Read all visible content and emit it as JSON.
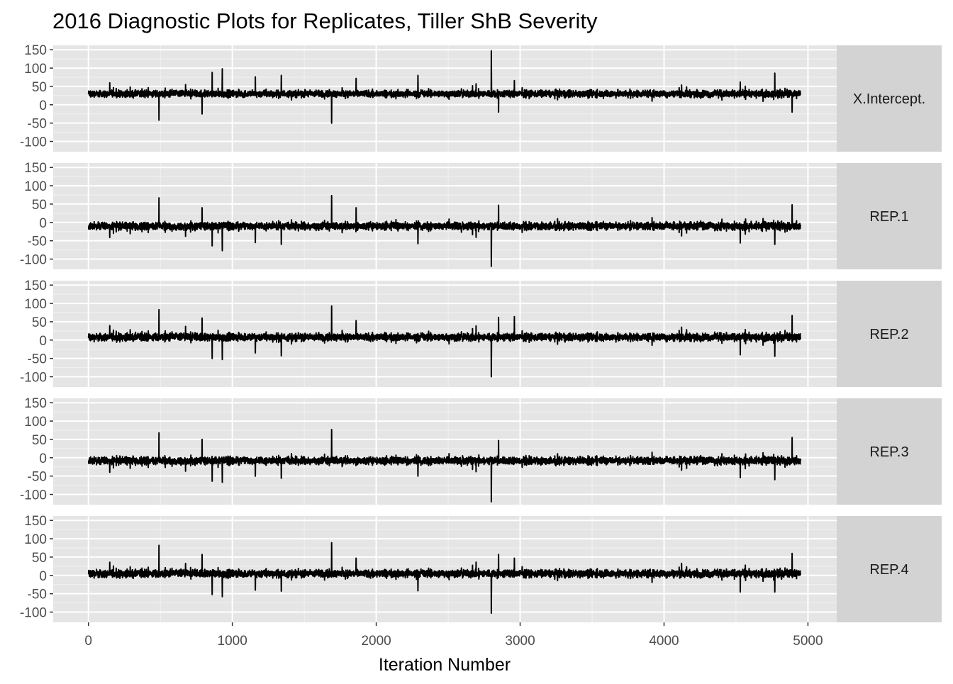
{
  "chart_data": {
    "type": "line",
    "title": "2016 Diagnostic Plots for Replicates, Tiller ShB Severity",
    "xlabel": "Iteration Number",
    "ylabel": "",
    "xlim": [
      -245,
      5200
    ],
    "ylim": [
      -128,
      162
    ],
    "xticks": [
      0,
      1000,
      2000,
      3000,
      4000,
      5000
    ],
    "xtick_labels": [
      "0",
      "1000",
      "2000",
      "3000",
      "4000",
      "5000"
    ],
    "yticks": [
      150,
      100,
      50,
      0,
      -50,
      -100
    ],
    "ytick_labels": [
      "150",
      "100",
      "50",
      "0",
      "-50",
      "-100"
    ],
    "grid": true,
    "panel_background": "#e5e5e5",
    "strip_background": "#d3d3d3",
    "line_color": "#000000",
    "n_iterations": 4950,
    "series": [
      {
        "name": "X.Intercept.",
        "center": 30,
        "spikes": [
          {
            "x": 2800,
            "y": 147
          },
          {
            "x": 930,
            "y": 98
          },
          {
            "x": 860,
            "y": 88
          },
          {
            "x": 4770,
            "y": 86
          },
          {
            "x": 4530,
            "y": 62
          },
          {
            "x": 1340,
            "y": 80
          },
          {
            "x": 2290,
            "y": 80
          },
          {
            "x": 1160,
            "y": 76
          },
          {
            "x": 1860,
            "y": 72
          },
          {
            "x": 2960,
            "y": 66
          },
          {
            "x": 1690,
            "y": -50
          },
          {
            "x": 490,
            "y": -42
          },
          {
            "x": 790,
            "y": -25
          },
          {
            "x": 2850,
            "y": -20
          },
          {
            "x": 4890,
            "y": -20
          }
        ]
      },
      {
        "name": "REP.1",
        "center": -10,
        "spikes": [
          {
            "x": 2800,
            "y": -120
          },
          {
            "x": 930,
            "y": -77
          },
          {
            "x": 860,
            "y": -64
          },
          {
            "x": 1340,
            "y": -60
          },
          {
            "x": 2290,
            "y": -58
          },
          {
            "x": 4530,
            "y": -56
          },
          {
            "x": 4770,
            "y": -60
          },
          {
            "x": 1160,
            "y": -55
          },
          {
            "x": 1690,
            "y": 73
          },
          {
            "x": 490,
            "y": 67
          },
          {
            "x": 4890,
            "y": 48
          },
          {
            "x": 2850,
            "y": 47
          },
          {
            "x": 1860,
            "y": 40
          },
          {
            "x": 790,
            "y": 40
          }
        ]
      },
      {
        "name": "REP.2",
        "center": 8,
        "spikes": [
          {
            "x": 2800,
            "y": -100
          },
          {
            "x": 930,
            "y": -53
          },
          {
            "x": 860,
            "y": -50
          },
          {
            "x": 1340,
            "y": -43
          },
          {
            "x": 4770,
            "y": -44
          },
          {
            "x": 4530,
            "y": -40
          },
          {
            "x": 1160,
            "y": -35
          },
          {
            "x": 1690,
            "y": 93
          },
          {
            "x": 490,
            "y": 83
          },
          {
            "x": 4890,
            "y": 67
          },
          {
            "x": 2960,
            "y": 64
          },
          {
            "x": 2850,
            "y": 62
          },
          {
            "x": 790,
            "y": 60
          },
          {
            "x": 1860,
            "y": 53
          }
        ]
      },
      {
        "name": "REP.3",
        "center": -8,
        "spikes": [
          {
            "x": 2800,
            "y": -120
          },
          {
            "x": 930,
            "y": -67
          },
          {
            "x": 860,
            "y": -64
          },
          {
            "x": 1340,
            "y": -56
          },
          {
            "x": 4770,
            "y": -60
          },
          {
            "x": 4530,
            "y": -54
          },
          {
            "x": 1160,
            "y": -50
          },
          {
            "x": 2290,
            "y": -50
          },
          {
            "x": 1690,
            "y": 77
          },
          {
            "x": 490,
            "y": 68
          },
          {
            "x": 4890,
            "y": 55
          },
          {
            "x": 2850,
            "y": 47
          },
          {
            "x": 790,
            "y": 50
          }
        ]
      },
      {
        "name": "REP.4",
        "center": 5,
        "spikes": [
          {
            "x": 2800,
            "y": -103
          },
          {
            "x": 930,
            "y": -58
          },
          {
            "x": 860,
            "y": -52
          },
          {
            "x": 1340,
            "y": -43
          },
          {
            "x": 4770,
            "y": -45
          },
          {
            "x": 4530,
            "y": -45
          },
          {
            "x": 1160,
            "y": -40
          },
          {
            "x": 2290,
            "y": -42
          },
          {
            "x": 1690,
            "y": 89
          },
          {
            "x": 490,
            "y": 82
          },
          {
            "x": 4890,
            "y": 60
          },
          {
            "x": 2850,
            "y": 57
          },
          {
            "x": 790,
            "y": 57
          },
          {
            "x": 1860,
            "y": 47
          },
          {
            "x": 2960,
            "y": 47
          }
        ]
      }
    ]
  }
}
